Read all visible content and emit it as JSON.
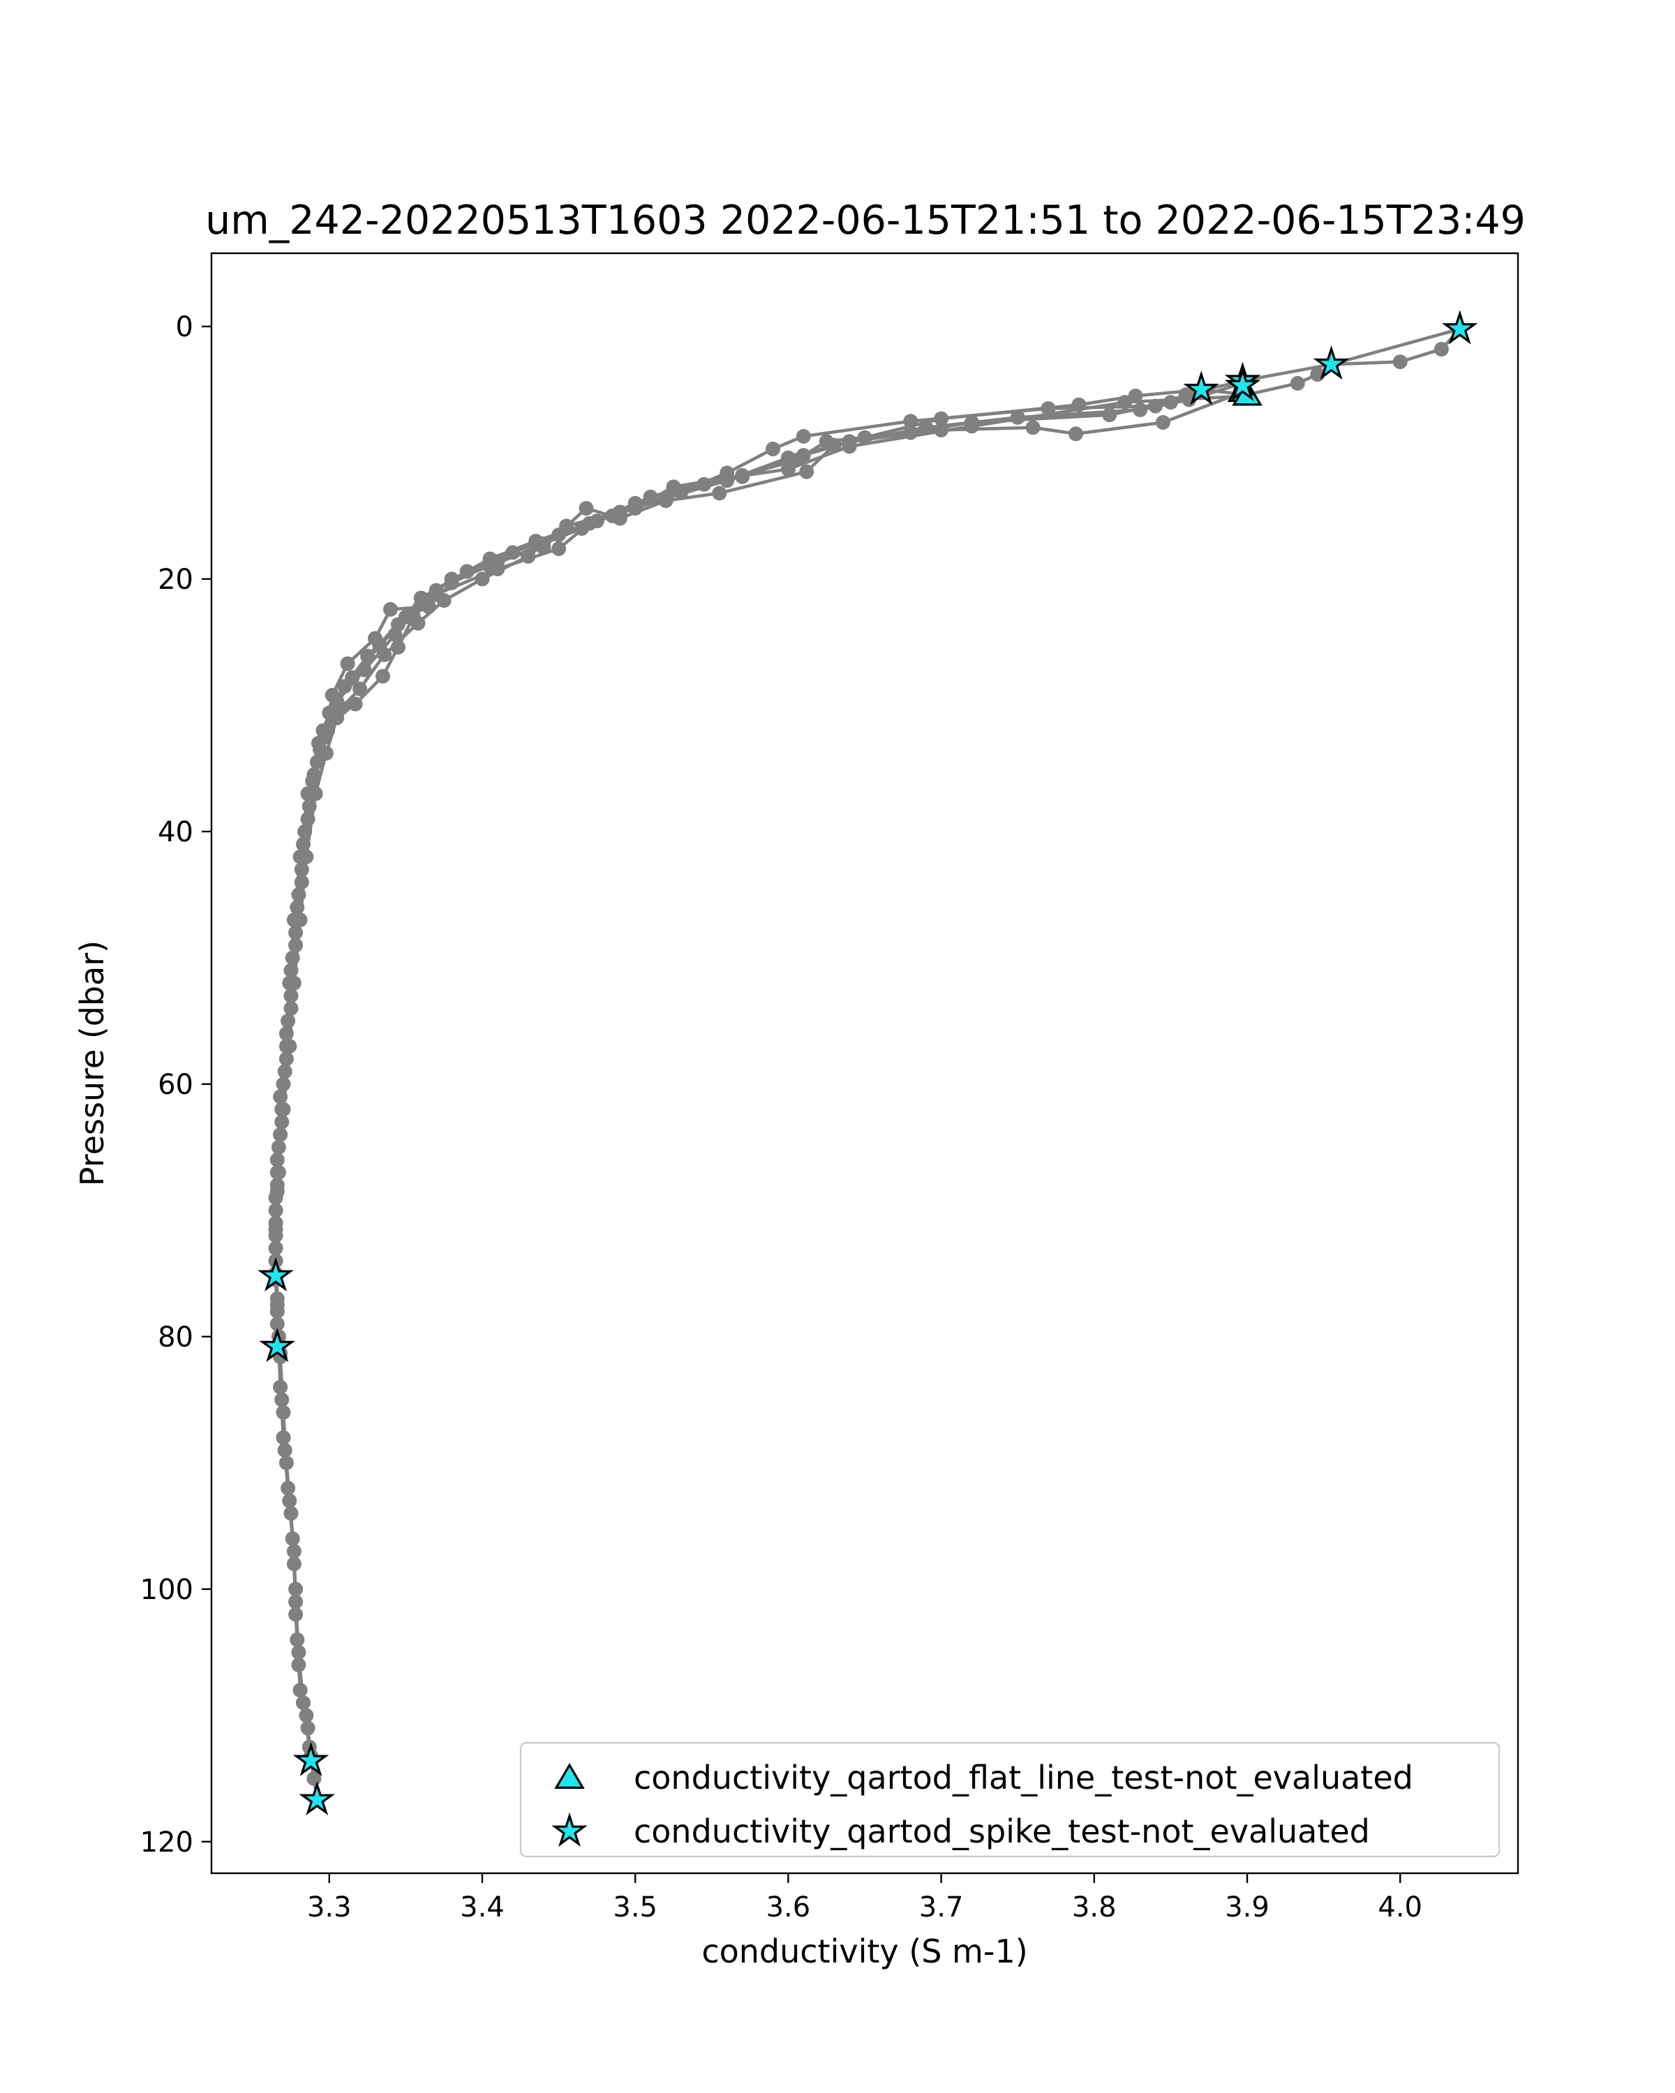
{
  "chart_data": {
    "type": "line",
    "title": "um_242-20220513T1603 2022-06-15T21:51 to 2022-06-15T23:49",
    "xlabel": "conductivity (S m-1)",
    "ylabel": "Pressure (dbar)",
    "xlim": [
      3.223,
      4.077
    ],
    "ylim": [
      122.5,
      -5.8
    ],
    "y_inverted": true,
    "grid": false,
    "legend_position": "lower-right",
    "xticks": [
      3.3,
      3.4,
      3.5,
      3.6,
      3.7,
      3.8,
      3.9,
      4.0
    ],
    "xtick_labels": [
      "3.3",
      "3.4",
      "3.5",
      "3.6",
      "3.7",
      "3.8",
      "3.9",
      "4.0"
    ],
    "yticks": [
      0,
      20,
      40,
      60,
      80,
      100,
      120
    ],
    "ytick_labels": [
      "0",
      "20",
      "40",
      "60",
      "80",
      "100",
      "120"
    ],
    "colors": {
      "profile": "#808080",
      "marker_fill": "#1ee6f0",
      "marker_edge": "#000000"
    },
    "series": [
      {
        "points": [
          [
            4.039,
            0.2
          ],
          [
            4.027,
            1.8
          ],
          [
            4.0,
            2.8
          ],
          [
            3.955,
            3.0
          ],
          [
            3.946,
            3.8
          ],
          [
            3.933,
            4.5
          ],
          [
            3.9,
            5.4
          ],
          [
            3.87,
            5.0
          ],
          [
            3.85,
            6.0
          ],
          [
            3.81,
            7.0
          ],
          [
            3.72,
            7.6
          ],
          [
            3.68,
            8.4
          ],
          [
            3.625,
            9.1
          ],
          [
            3.605,
            10.6
          ],
          [
            3.57,
            11.8
          ],
          [
            3.525,
            12.9
          ],
          [
            3.5,
            14.0
          ],
          [
            3.475,
            15.4
          ],
          [
            3.45,
            16.5
          ],
          [
            3.42,
            17.9
          ],
          [
            3.39,
            19.4
          ],
          [
            3.36,
            21.5
          ],
          [
            3.345,
            23.6
          ],
          [
            3.325,
            26.1
          ],
          [
            3.31,
            28.5
          ],
          [
            3.3,
            30.6
          ],
          [
            3.293,
            33.0
          ],
          [
            3.286,
            37.0
          ],
          [
            3.281,
            42.0
          ],
          [
            3.277,
            47.0
          ],
          [
            3.274,
            52.0
          ],
          [
            3.272,
            57.0
          ],
          [
            3.269,
            62.0
          ],
          [
            3.266,
            67.0
          ],
          [
            3.265,
            71.0
          ],
          [
            3.265,
            75.2
          ],
          [
            3.266,
            78.0
          ],
          [
            3.267,
            80.8
          ],
          [
            3.268,
            84.0
          ],
          [
            3.27,
            88.0
          ],
          [
            3.273,
            92.0
          ],
          [
            3.276,
            96.0
          ],
          [
            3.278,
            100.0
          ],
          [
            3.279,
            104.0
          ],
          [
            3.281,
            108.0
          ],
          [
            3.286,
            111.0
          ],
          [
            3.288,
            113.5
          ],
          [
            3.29,
            115.0
          ],
          [
            3.292,
            116.7
          ]
        ]
      },
      {
        "points": [
          [
            4.039,
            0.2
          ],
          [
            3.955,
            3.0
          ],
          [
            3.897,
            4.3
          ],
          [
            3.86,
            5.4
          ],
          [
            3.84,
            6.3
          ],
          [
            3.77,
            6.5
          ],
          [
            3.68,
            7.5
          ],
          [
            3.61,
            8.7
          ],
          [
            3.59,
            9.7
          ],
          [
            3.56,
            11.6
          ],
          [
            3.53,
            13.1
          ],
          [
            3.49,
            14.7
          ],
          [
            3.465,
            16.0
          ],
          [
            3.44,
            17.2
          ],
          [
            3.405,
            19.0
          ],
          [
            3.38,
            20.0
          ],
          [
            3.36,
            22.0
          ],
          [
            3.343,
            24.4
          ],
          [
            3.323,
            27.2
          ],
          [
            3.305,
            29.7
          ],
          [
            3.296,
            32.0
          ],
          [
            3.289,
            36.0
          ],
          [
            3.283,
            41.0
          ],
          [
            3.279,
            46.0
          ],
          [
            3.275,
            51.0
          ],
          [
            3.272,
            56.0
          ],
          [
            3.268,
            61.0
          ],
          [
            3.266,
            66.0
          ],
          [
            3.265,
            70.0
          ],
          [
            3.265,
            75.2
          ],
          [
            3.266,
            79.0
          ],
          [
            3.267,
            81.2
          ],
          [
            3.269,
            85.0
          ],
          [
            3.271,
            89.0
          ],
          [
            3.274,
            93.0
          ],
          [
            3.277,
            97.0
          ],
          [
            3.278,
            101.0
          ],
          [
            3.28,
            105.0
          ],
          [
            3.283,
            109.0
          ],
          [
            3.287,
            112.5
          ],
          [
            3.288,
            113.6
          ]
        ]
      },
      {
        "points": [
          [
            3.87,
            5.0
          ],
          [
            3.827,
            5.5
          ],
          [
            3.79,
            6.2
          ],
          [
            3.7,
            7.3
          ],
          [
            3.65,
            8.8
          ],
          [
            3.61,
            10.2
          ],
          [
            3.57,
            11.9
          ],
          [
            3.545,
            12.5
          ],
          [
            3.51,
            13.5
          ],
          [
            3.485,
            15.0
          ],
          [
            3.435,
            17.0
          ],
          [
            3.405,
            18.4
          ],
          [
            3.39,
            19.4
          ],
          [
            3.37,
            20.9
          ],
          [
            3.35,
            23.0
          ],
          [
            3.333,
            25.3
          ],
          [
            3.315,
            27.8
          ],
          [
            3.303,
            30.4
          ],
          [
            3.294,
            33.5
          ],
          [
            3.287,
            38.0
          ],
          [
            3.282,
            43.0
          ],
          [
            3.278,
            48.0
          ],
          [
            3.275,
            53.0
          ],
          [
            3.272,
            58.0
          ],
          [
            3.269,
            63.0
          ],
          [
            3.266,
            68.0
          ],
          [
            3.265,
            72.0
          ],
          [
            3.265,
            75.0
          ],
          [
            3.266,
            78.0
          ],
          [
            3.267,
            81.0
          ]
        ]
      },
      {
        "points": [
          [
            3.897,
            4.5
          ],
          [
            3.862,
            5.8
          ],
          [
            3.83,
            6.6
          ],
          [
            3.75,
            7.2
          ],
          [
            3.69,
            8.0
          ],
          [
            3.63,
            9.4
          ],
          [
            3.612,
            11.5
          ],
          [
            3.555,
            13.2
          ],
          [
            3.52,
            13.8
          ],
          [
            3.49,
            15.2
          ],
          [
            3.468,
            14.4
          ],
          [
            3.44,
            17.5
          ],
          [
            3.41,
            18.6
          ],
          [
            3.38,
            20.3
          ],
          [
            3.365,
            22.2
          ],
          [
            3.34,
            22.4
          ],
          [
            3.33,
            24.7
          ],
          [
            3.312,
            26.7
          ],
          [
            3.302,
            29.2
          ],
          [
            3.297,
            32.5
          ],
          [
            3.29,
            35.5
          ],
          [
            3.284,
            40.0
          ],
          [
            3.28,
            45.0
          ],
          [
            3.276,
            50.0
          ],
          [
            3.273,
            55.0
          ],
          [
            3.27,
            60.0
          ],
          [
            3.267,
            65.0
          ],
          [
            3.265,
            69.0
          ],
          [
            3.265,
            73.0
          ],
          [
            3.266,
            77.0
          ],
          [
            3.267,
            80.0
          ],
          [
            3.268,
            81.6
          ],
          [
            3.27,
            86.0
          ],
          [
            3.272,
            90.0
          ],
          [
            3.275,
            94.0
          ],
          [
            3.277,
            98.0
          ],
          [
            3.278,
            102.0
          ],
          [
            3.28,
            106.0
          ],
          [
            3.285,
            110.0
          ],
          [
            3.288,
            113.2
          ]
        ]
      },
      {
        "points": [
          [
            3.897,
            5.2
          ],
          [
            3.845,
            7.6
          ],
          [
            3.788,
            8.5
          ],
          [
            3.76,
            8.0
          ],
          [
            3.7,
            8.2
          ],
          [
            3.64,
            9.1
          ],
          [
            3.6,
            10.4
          ],
          [
            3.56,
            12.2
          ],
          [
            3.52,
            13.6
          ],
          [
            3.47,
            15.6
          ],
          [
            3.45,
            17.6
          ],
          [
            3.41,
            19.2
          ],
          [
            3.37,
            21.2
          ],
          [
            3.355,
            23.0
          ],
          [
            3.345,
            25.4
          ],
          [
            3.335,
            27.7
          ],
          [
            3.317,
            29.9
          ],
          [
            3.305,
            31.0
          ],
          [
            3.298,
            33.8
          ],
          [
            3.291,
            37.0
          ],
          [
            3.285,
            42.0
          ],
          [
            3.281,
            47.0
          ],
          [
            3.277,
            52.0
          ],
          [
            3.274,
            57.0
          ],
          [
            3.27,
            62.0
          ],
          [
            3.267,
            67.0
          ],
          [
            3.265,
            71.5
          ],
          [
            3.265,
            75.5
          ]
        ]
      },
      {
        "points": [
          [
            3.9,
            5.5
          ],
          [
            3.82,
            6.0
          ],
          [
            3.72,
            7.9
          ],
          [
            3.64,
            9.5
          ],
          [
            3.6,
            11.3
          ],
          [
            3.56,
            12.0
          ],
          [
            3.525,
            12.7
          ],
          [
            3.5,
            14.4
          ],
          [
            3.455,
            15.8
          ],
          [
            3.43,
            18.2
          ],
          [
            3.4,
            20.0
          ],
          [
            3.375,
            21.7
          ],
          [
            3.358,
            23.5
          ],
          [
            3.336,
            26.0
          ],
          [
            3.32,
            28.7
          ],
          [
            3.308,
            30.2
          ],
          [
            3.299,
            32.0
          ],
          [
            3.292,
            34.5
          ],
          [
            3.286,
            39.0
          ],
          [
            3.282,
            44.0
          ],
          [
            3.278,
            49.0
          ],
          [
            3.275,
            54.0
          ],
          [
            3.271,
            59.0
          ],
          [
            3.268,
            64.0
          ],
          [
            3.266,
            68.5
          ],
          [
            3.265,
            74.0
          ],
          [
            3.266,
            77.5
          ],
          [
            3.268,
            81.3
          ]
        ]
      }
    ],
    "markers": [
      {
        "name": "conductivity_qartod_flat_line_test-not_evaluated",
        "shape": "triangle",
        "points": [
          [
            3.897,
            5.2
          ],
          [
            3.9,
            5.5
          ]
        ]
      },
      {
        "name": "conductivity_qartod_spike_test-not_evaluated",
        "shape": "star",
        "points": [
          [
            4.039,
            0.2
          ],
          [
            3.955,
            3.0
          ],
          [
            3.897,
            4.3
          ],
          [
            3.897,
            4.7
          ],
          [
            3.87,
            5.0
          ],
          [
            3.265,
            75.2
          ],
          [
            3.266,
            80.8
          ],
          [
            3.288,
            113.6
          ],
          [
            3.292,
            116.7
          ]
        ]
      }
    ],
    "legend": [
      {
        "label": "conductivity_qartod_flat_line_test-not_evaluated",
        "shape": "triangle"
      },
      {
        "label": "conductivity_qartod_spike_test-not_evaluated",
        "shape": "star"
      }
    ]
  }
}
